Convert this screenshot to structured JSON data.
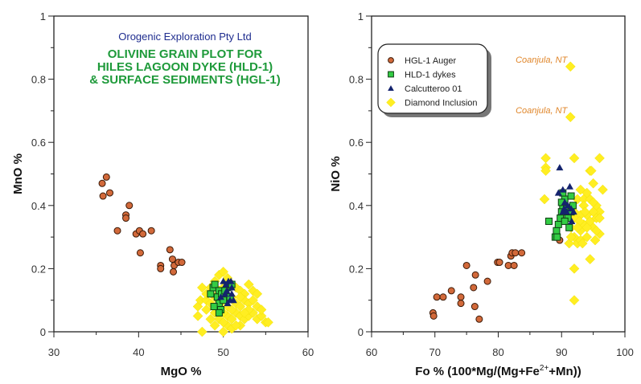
{
  "chart_data": [
    {
      "type": "scatter",
      "xlabel": "MgO %",
      "ylabel": "MnO %",
      "xlim": [
        30,
        60
      ],
      "ylim": [
        0,
        1
      ],
      "xticks": [
        "30",
        "40",
        "50",
        "60"
      ],
      "yticks": [
        "0",
        "0.2",
        "0.4",
        "0.6",
        "0.8",
        "1"
      ],
      "grid": false,
      "title_lines": [
        {
          "text": "Orogenic Exploration Pty Ltd",
          "color": "#1f2d8f"
        },
        {
          "text": "OLIVINE GRAIN PLOT FOR",
          "color": "#1e9a3a"
        },
        {
          "text": "HILES LAGOON DYKE (HLD-1)",
          "color": "#1e9a3a"
        },
        {
          "text": "& SURFACE SEDIMENTS (HGL-1)",
          "color": "#1e9a3a"
        }
      ],
      "series": [
        {
          "name": "Diamond Inclusion",
          "marker": "diamond",
          "color": "#ffee22",
          "points": [
            [
              47.5,
              0
            ],
            [
              50,
              0
            ],
            [
              50.5,
              0.02
            ],
            [
              51,
              0.01
            ],
            [
              47,
              0.05
            ],
            [
              47,
              0.08
            ],
            [
              47.3,
              0.1
            ],
            [
              48,
              0.1
            ],
            [
              48.5,
              0.14
            ],
            [
              47.5,
              0.14
            ],
            [
              48,
              0.12
            ],
            [
              48.5,
              0.09
            ],
            [
              49,
              0.06
            ],
            [
              49.5,
              0.04
            ],
            [
              50,
              0.03
            ],
            [
              50.5,
              0.05
            ],
            [
              51,
              0.04
            ],
            [
              51.5,
              0.06
            ],
            [
              52,
              0.05
            ],
            [
              52.5,
              0.04
            ],
            [
              53,
              0.05
            ],
            [
              53.5,
              0.06
            ],
            [
              54,
              0.04
            ],
            [
              54.5,
              0.05
            ],
            [
              55,
              0.03
            ],
            [
              55.3,
              0.03
            ],
            [
              49,
              0.16
            ],
            [
              49.5,
              0.18
            ],
            [
              50,
              0.19
            ],
            [
              50.5,
              0.17
            ],
            [
              51,
              0.15
            ],
            [
              51.5,
              0.14
            ],
            [
              52,
              0.13
            ],
            [
              52.5,
              0.12
            ],
            [
              53,
              0.15
            ],
            [
              53.5,
              0.13
            ],
            [
              49,
              0.11
            ],
            [
              49.5,
              0.13
            ],
            [
              50,
              0.1
            ],
            [
              50.5,
              0.08
            ],
            [
              51,
              0.11
            ],
            [
              51.5,
              0.09
            ],
            [
              52,
              0.08
            ],
            [
              52.5,
              0.1
            ],
            [
              53,
              0.09
            ],
            [
              53.5,
              0.1
            ],
            [
              54,
              0.08
            ],
            [
              54.5,
              0.07
            ],
            [
              52,
              0.02
            ],
            [
              51.5,
              0.02
            ],
            [
              48,
              0.07
            ],
            [
              49.5,
              0.08
            ],
            [
              50,
              0.14
            ],
            [
              52,
              0.11
            ],
            [
              53,
              0.07
            ],
            [
              54,
              0.12
            ],
            [
              48.5,
              0.04
            ],
            [
              51,
              0.07
            ],
            [
              50,
              0.06
            ],
            [
              52.5,
              0.06
            ],
            [
              49,
              0.02
            ]
          ]
        },
        {
          "name": "HGL-1 Auger",
          "marker": "circle",
          "color": "#d2693a",
          "points": [
            [
              36.2,
              0.49
            ],
            [
              35.7,
              0.47
            ],
            [
              35.8,
              0.43
            ],
            [
              36.6,
              0.44
            ],
            [
              38.9,
              0.4
            ],
            [
              38.5,
              0.37
            ],
            [
              38.5,
              0.36
            ],
            [
              37.5,
              0.32
            ],
            [
              39.7,
              0.31
            ],
            [
              40.1,
              0.32
            ],
            [
              40.5,
              0.31
            ],
            [
              41.5,
              0.32
            ],
            [
              40.2,
              0.25
            ],
            [
              43.7,
              0.26
            ],
            [
              44.0,
              0.23
            ],
            [
              42.6,
              0.21
            ],
            [
              42.6,
              0.2
            ],
            [
              44.2,
              0.21
            ],
            [
              44.7,
              0.22
            ],
            [
              45.1,
              0.22
            ],
            [
              44.1,
              0.19
            ]
          ]
        },
        {
          "name": "HLD-1 dykes",
          "marker": "square",
          "color": "#33cc44",
          "points": [
            [
              48.5,
              0.12
            ],
            [
              48.8,
              0.14
            ],
            [
              49,
              0.15
            ],
            [
              49.5,
              0.13
            ],
            [
              49.3,
              0.11
            ],
            [
              49.8,
              0.12
            ],
            [
              50.5,
              0.14
            ],
            [
              49.5,
              0.09
            ],
            [
              49.7,
              0.07
            ],
            [
              49.5,
              0.06
            ],
            [
              50,
              0.1
            ],
            [
              50.2,
              0.13
            ],
            [
              51,
              0.15
            ],
            [
              48.9,
              0.08
            ],
            [
              50.8,
              0.11
            ]
          ]
        },
        {
          "name": "Calcutteroo 01",
          "marker": "triangle",
          "color": "#14236e",
          "points": [
            [
              50,
              0.16
            ],
            [
              50.3,
              0.15
            ],
            [
              50.6,
              0.16
            ],
            [
              51,
              0.14
            ],
            [
              50.2,
              0.12
            ],
            [
              50.8,
              0.1
            ],
            [
              51.2,
              0.1
            ],
            [
              50.5,
              0.09
            ],
            [
              51,
              0.12
            ],
            [
              49.7,
              0.11
            ],
            [
              50.9,
              0.16
            ],
            [
              50.4,
              0.13
            ]
          ]
        }
      ]
    },
    {
      "type": "scatter",
      "xlabel": "Fo % (100*Mg/(Mg+Fe",
      "xlabel_sup": "2+",
      "xlabel_end": "+Mn))",
      "ylabel": "NiO %",
      "xlim": [
        60,
        100
      ],
      "ylim": [
        0,
        1
      ],
      "xticks": [
        "60",
        "70",
        "80",
        "90",
        "100"
      ],
      "yticks": [
        "0",
        "0.2",
        "0.4",
        "0.6",
        "0.8",
        "1"
      ],
      "grid": false,
      "annotations": [
        {
          "text": "Coanjula, NT",
          "x": 91.4,
          "y": 0.84,
          "color": "#e0862a"
        },
        {
          "text": "Coanjula, NT",
          "x": 91.4,
          "y": 0.68,
          "color": "#e0862a"
        }
      ],
      "legend": {
        "placement": "top-left",
        "entries": [
          {
            "label": "HGL-1 Auger",
            "marker": "circle",
            "color": "#d2693a"
          },
          {
            "label": "HLD-1 dykes",
            "marker": "square",
            "color": "#33cc44"
          },
          {
            "label": "Calcutteroo 01",
            "marker": "triangle",
            "color": "#14236e"
          },
          {
            "label": "Diamond Inclusion",
            "marker": "diamond",
            "color": "#ffee22"
          }
        ]
      },
      "series": [
        {
          "name": "Diamond Inclusion",
          "marker": "diamond",
          "color": "#ffee22",
          "points": [
            [
              87.5,
              0.55
            ],
            [
              87.5,
              0.52
            ],
            [
              87.5,
              0.51
            ],
            [
              87.3,
              0.42
            ],
            [
              96,
              0.55
            ],
            [
              92,
              0.55
            ],
            [
              94.5,
              0.51
            ],
            [
              94.7,
              0.51
            ],
            [
              95,
              0.47
            ],
            [
              96.5,
              0.45
            ],
            [
              93,
              0.45
            ],
            [
              92.5,
              0.42
            ],
            [
              93.5,
              0.42
            ],
            [
              94.5,
              0.42
            ],
            [
              95.5,
              0.4
            ],
            [
              96,
              0.38
            ],
            [
              95,
              0.38
            ],
            [
              94,
              0.37
            ],
            [
              93,
              0.37
            ],
            [
              92,
              0.36
            ],
            [
              91.5,
              0.33
            ],
            [
              92,
              0.3
            ],
            [
              92.5,
              0.28
            ],
            [
              93,
              0.32
            ],
            [
              94,
              0.3
            ],
            [
              95,
              0.33
            ],
            [
              96,
              0.31
            ],
            [
              95.5,
              0.36
            ],
            [
              93.5,
              0.34
            ],
            [
              91.2,
              0.28
            ],
            [
              92,
              0.38
            ],
            [
              93.5,
              0.4
            ],
            [
              94.5,
              0.35
            ],
            [
              95,
              0.41
            ],
            [
              94,
              0.44
            ],
            [
              92.8,
              0.35
            ],
            [
              93,
              0.29
            ],
            [
              91.5,
              0.3
            ],
            [
              92.5,
              0.33
            ],
            [
              95.5,
              0.32
            ],
            [
              94.5,
              0.23
            ],
            [
              92,
              0.2
            ],
            [
              92,
              0.1
            ],
            [
              91.4,
              0.84
            ],
            [
              91.4,
              0.68
            ],
            [
              93.3,
              0.28
            ],
            [
              94,
              0.33
            ],
            [
              96,
              0.36
            ],
            [
              95.3,
              0.29
            ],
            [
              93.7,
              0.38
            ]
          ]
        },
        {
          "name": "HGL-1 Auger",
          "marker": "circle",
          "color": "#d2693a",
          "points": [
            [
              69.7,
              0.06
            ],
            [
              69.8,
              0.05
            ],
            [
              70.3,
              0.11
            ],
            [
              71.3,
              0.11
            ],
            [
              72.6,
              0.13
            ],
            [
              74.1,
              0.11
            ],
            [
              74.1,
              0.09
            ],
            [
              75.0,
              0.21
            ],
            [
              76.4,
              0.18
            ],
            [
              76.1,
              0.14
            ],
            [
              76.3,
              0.08
            ],
            [
              77.0,
              0.04
            ],
            [
              78.3,
              0.16
            ],
            [
              79.9,
              0.22
            ],
            [
              80.2,
              0.22
            ],
            [
              81.6,
              0.21
            ],
            [
              82.5,
              0.21
            ],
            [
              82.0,
              0.24
            ],
            [
              82.2,
              0.25
            ],
            [
              82.7,
              0.25
            ],
            [
              83.7,
              0.25
            ],
            [
              89.7,
              0.29
            ]
          ]
        },
        {
          "name": "HLD-1 dykes",
          "marker": "square",
          "color": "#33cc44",
          "points": [
            [
              88,
              0.35
            ],
            [
              89,
              0.3
            ],
            [
              89.2,
              0.32
            ],
            [
              89.5,
              0.34
            ],
            [
              89.8,
              0.36
            ],
            [
              90,
              0.38
            ],
            [
              90.2,
              0.4
            ],
            [
              90.5,
              0.42
            ],
            [
              90.2,
              0.44
            ],
            [
              90.8,
              0.39
            ],
            [
              91,
              0.37
            ],
            [
              91.5,
              0.38
            ],
            [
              91.8,
              0.4
            ],
            [
              91,
              0.36
            ],
            [
              90.5,
              0.35
            ],
            [
              91.2,
              0.33
            ],
            [
              90,
              0.41
            ],
            [
              89.3,
              0.3
            ],
            [
              91.5,
              0.43
            ]
          ]
        },
        {
          "name": "Calcutteroo 01",
          "marker": "triangle",
          "color": "#14236e",
          "points": [
            [
              89.7,
              0.52
            ],
            [
              89.5,
              0.44
            ],
            [
              90.2,
              0.45
            ],
            [
              91.3,
              0.46
            ],
            [
              90.5,
              0.41
            ],
            [
              91,
              0.4
            ],
            [
              91.5,
              0.39
            ],
            [
              90.4,
              0.39
            ],
            [
              90.8,
              0.38
            ],
            [
              91.6,
              0.35
            ],
            [
              91.9,
              0.38
            ],
            [
              90.2,
              0.38
            ]
          ]
        }
      ]
    }
  ]
}
